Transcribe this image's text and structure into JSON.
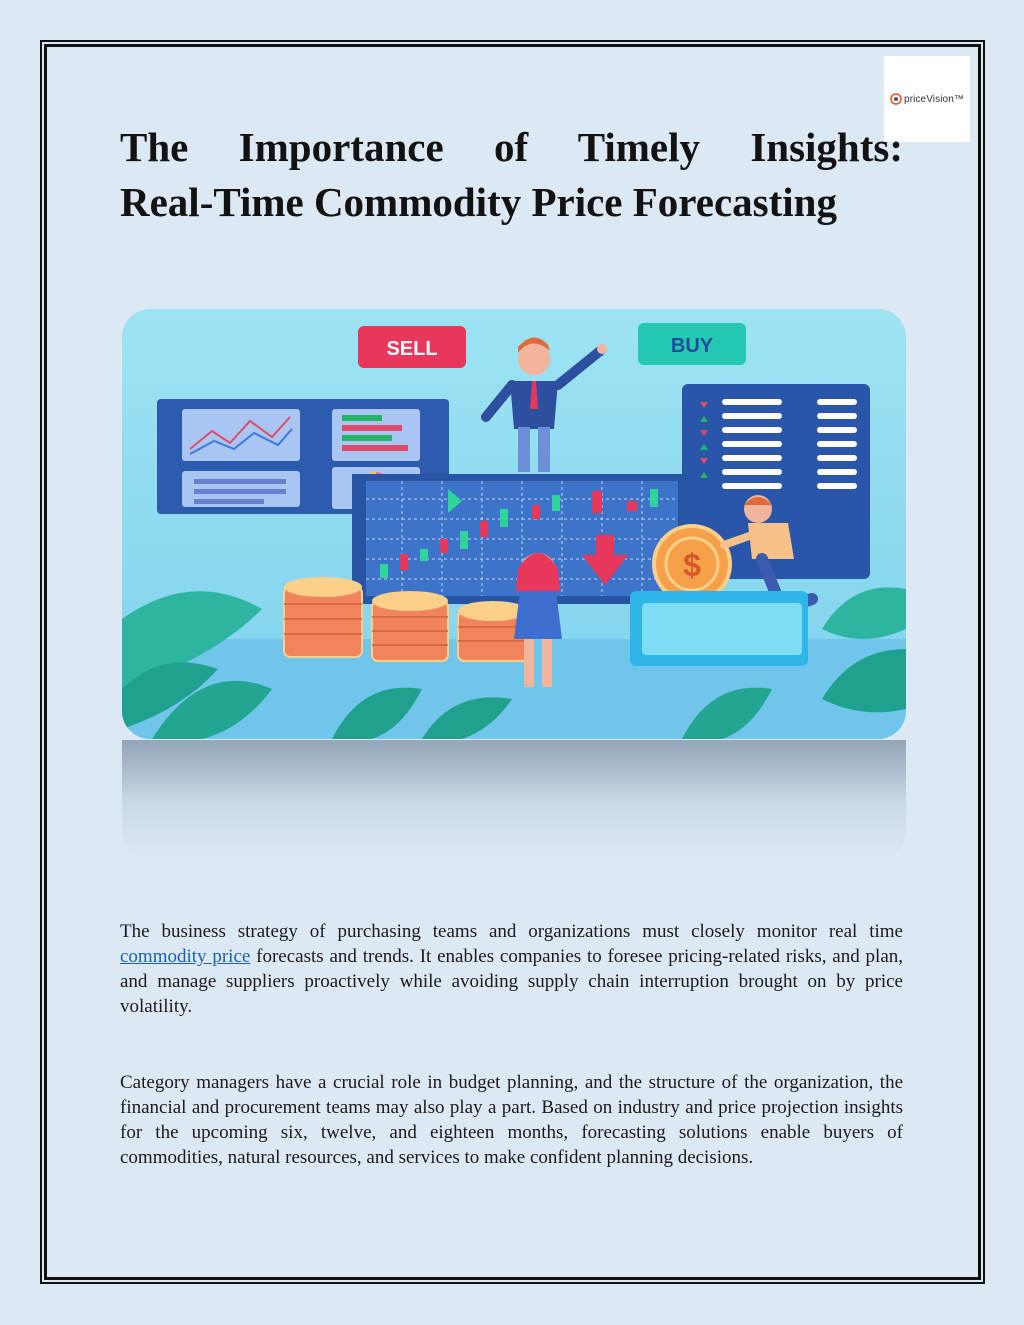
{
  "logo": {
    "text": "priceVision™",
    "alt_name": "priceVision"
  },
  "title": {
    "line1": "The Importance of Timely Insights:",
    "line2": "Real-Time Commodity Price Forecasting"
  },
  "hero": {
    "sell_label": "SELL",
    "buy_label": "BUY",
    "currency_symbol": "$"
  },
  "paragraph1": {
    "before": "The business strategy of purchasing teams and organizations must closely monitor real time ",
    "link_text": "commodity price",
    "after": " forecasts and trends. It enables companies to foresee pricing-related risks, and plan, and manage suppliers proactively while avoiding supply chain interruption brought on by price volatility."
  },
  "paragraph2": {
    "text": "Category managers have a crucial role in budget planning, and the structure of the organization, the financial and procurement teams may also play a part. Based on industry and price projection insights for the upcoming six, twelve, and eighteen months, forecasting solutions enable buyers of commodities, natural resources, and services to make confident planning decisions."
  },
  "colors": {
    "background": "#dde8f5",
    "link": "#1a5fb4",
    "sell": "#e8375a",
    "buy": "#25c8b0",
    "hero_sky": "#8fdcf0"
  }
}
